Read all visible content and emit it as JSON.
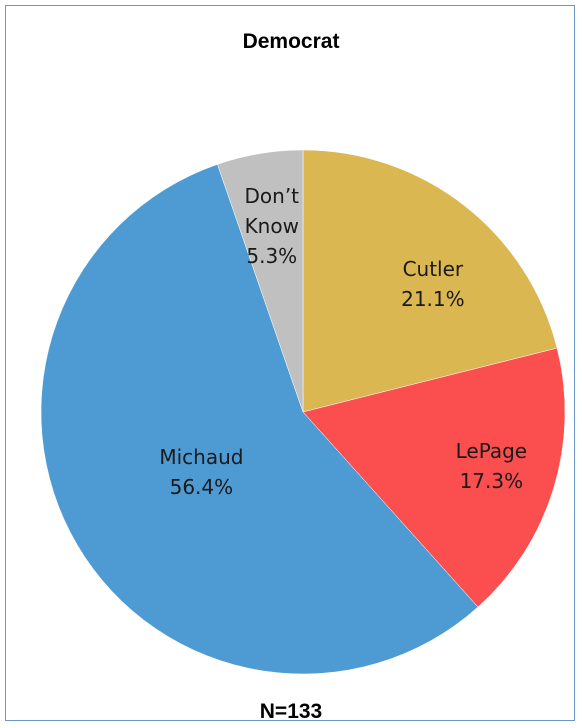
{
  "chart_data": {
    "type": "pie",
    "title": "Democrat",
    "footer": "N=133",
    "slices": [
      {
        "label_lines": [
          "Cutler",
          "21.1%"
        ],
        "label": "Cutler",
        "value": 21.1,
        "color": "#dbb751"
      },
      {
        "label_lines": [
          "LePage",
          "17.3%"
        ],
        "label": "LePage",
        "value": 17.3,
        "color": "#fb4e4e"
      },
      {
        "label_lines": [
          "Michaud",
          "56.4%"
        ],
        "label": "Michaud",
        "value": 56.4,
        "color": "#4e9bd4"
      },
      {
        "label_lines": [
          "Don’t",
          "Know",
          "5.3%"
        ],
        "label": "Don’t Know",
        "value": 5.3,
        "color": "#c0c0c0"
      }
    ]
  }
}
